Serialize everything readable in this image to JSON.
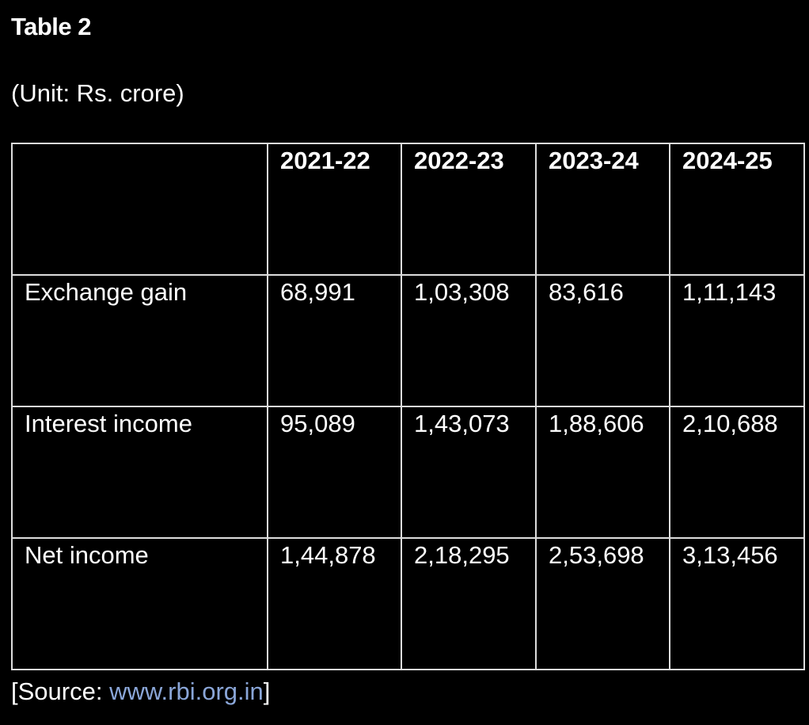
{
  "header": {
    "title": "Table 2",
    "unit": "(Unit: Rs. crore)"
  },
  "table": {
    "columns": [
      "2021-22",
      "2022-23",
      "2023-24",
      "2024-25"
    ],
    "rows": [
      {
        "label": "Exchange gain",
        "cells": [
          "68,991",
          "1,03,308",
          "83,616",
          "1,11,143"
        ]
      },
      {
        "label": "Interest income",
        "cells": [
          "95,089",
          "1,43,073",
          "1,88,606",
          "2,10,688"
        ]
      },
      {
        "label": "Net income",
        "cells": [
          "1,44,878",
          "2,18,295",
          "2,53,698",
          "3,13,456"
        ]
      }
    ]
  },
  "source": {
    "prefix": "[Source:",
    "link": "www.rbi.org.in",
    "suffix": "]"
  }
}
